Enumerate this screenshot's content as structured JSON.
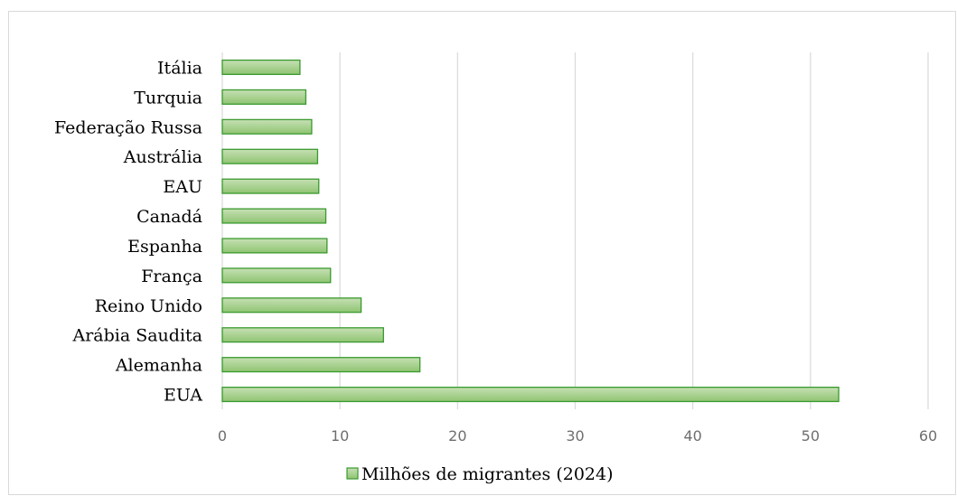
{
  "chart_data": {
    "type": "bar",
    "orientation": "horizontal",
    "categories": [
      "Itália",
      "Turquia",
      "Federação Russa",
      "Austrália",
      "EAU",
      "Canadá",
      "Espanha",
      "França",
      "Reino Unido",
      "Arábia Saudita",
      "Alemanha",
      "EUA"
    ],
    "series": [
      {
        "name": "Milhões de migrantes (2024)",
        "values": [
          6.6,
          7.1,
          7.6,
          8.1,
          8.2,
          8.8,
          8.9,
          9.2,
          11.8,
          13.7,
          16.8,
          52.4
        ]
      }
    ],
    "xlim": [
      0,
      60
    ],
    "xticks": [
      "0",
      "10",
      "20",
      "30",
      "40",
      "50",
      "60"
    ],
    "grid": true,
    "legend_position": "bottom",
    "colors": {
      "bar_fill_top": "#c6e0b4",
      "bar_fill_bottom": "#8fc472",
      "bar_stroke": "#3a9a2f",
      "grid": "#d9d9d9"
    }
  }
}
